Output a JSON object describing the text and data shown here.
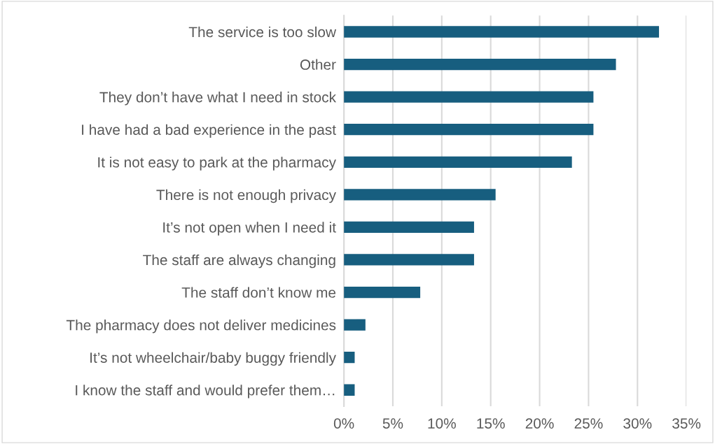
{
  "chart_data": {
    "type": "bar",
    "orientation": "horizontal",
    "categories": [
      "The service is too slow",
      "Other",
      "They don’t have what I need in stock",
      "I have had a bad experience in the past",
      "It is not easy to park at the pharmacy",
      "There is not enough privacy",
      "It’s not open when I need it",
      "The staff are always changing",
      "The staff don’t know me",
      "The pharmacy does not deliver medicines",
      "It’s not wheelchair/baby buggy friendly",
      "I know the staff and would prefer them…"
    ],
    "values": [
      32.2,
      27.8,
      25.5,
      25.5,
      23.3,
      15.5,
      13.3,
      13.3,
      7.8,
      2.2,
      1.1,
      1.1
    ],
    "color": "#175e7f",
    "xlim": [
      0,
      35
    ],
    "xticks": [
      {
        "value": 0,
        "label": "0%"
      },
      {
        "value": 5,
        "label": "5%"
      },
      {
        "value": 10,
        "label": "10%"
      },
      {
        "value": 15,
        "label": "15%"
      },
      {
        "value": 20,
        "label": "20%"
      },
      {
        "value": 25,
        "label": "25%"
      },
      {
        "value": 30,
        "label": "30%"
      },
      {
        "value": 35,
        "label": "35%"
      }
    ],
    "grid": "x"
  }
}
